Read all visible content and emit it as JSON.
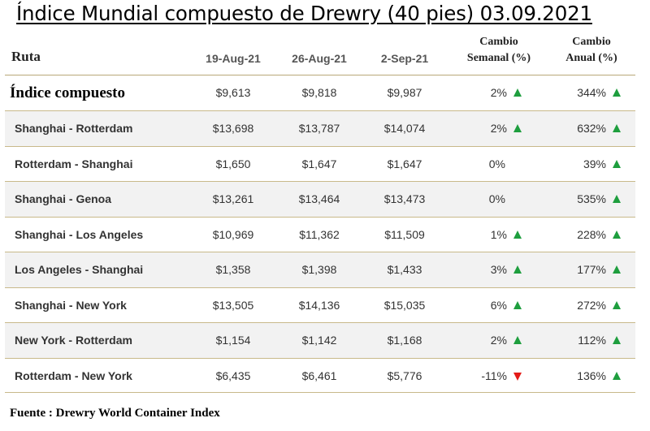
{
  "title": "Índice Mundial compuesto de Drewry (40 pies) 03.09.2021",
  "headers": {
    "route": "Ruta",
    "date1": "19-Aug-21",
    "date2": "26-Aug-21",
    "date3": "2-Sep-21",
    "weekly_line1": "Cambio",
    "weekly_line2": "Semanal (%)",
    "annual_line1": "Cambio",
    "annual_line2": "Anual (%)"
  },
  "rows": [
    {
      "route": "Índice compuesto",
      "d1": "$9,613",
      "d2": "$9,818",
      "d3": "$9,987",
      "weekly": "2%",
      "weekly_dir": "up",
      "annual": "344%",
      "annual_dir": "up"
    },
    {
      "route": "Shanghai - Rotterdam",
      "d1": "$13,698",
      "d2": "$13,787",
      "d3": "$14,074",
      "weekly": "2%",
      "weekly_dir": "up",
      "annual": "632%",
      "annual_dir": "up"
    },
    {
      "route": "Rotterdam - Shanghai",
      "d1": "$1,650",
      "d2": "$1,647",
      "d3": "$1,647",
      "weekly": "0%",
      "weekly_dir": "none",
      "annual": "39%",
      "annual_dir": "up"
    },
    {
      "route": "Shanghai - Genoa",
      "d1": "$13,261",
      "d2": "$13,464",
      "d3": "$13,473",
      "weekly": "0%",
      "weekly_dir": "none",
      "annual": "535%",
      "annual_dir": "up"
    },
    {
      "route": "Shanghai - Los Angeles",
      "d1": "$10,969",
      "d2": "$11,362",
      "d3": "$11,509",
      "weekly": "1%",
      "weekly_dir": "up",
      "annual": "228%",
      "annual_dir": "up"
    },
    {
      "route": "Los Angeles - Shanghai",
      "d1": "$1,358",
      "d2": "$1,398",
      "d3": "$1,433",
      "weekly": "3%",
      "weekly_dir": "up",
      "annual": "177%",
      "annual_dir": "up"
    },
    {
      "route": "Shanghai - New York",
      "d1": "$13,505",
      "d2": "$14,136",
      "d3": "$15,035",
      "weekly": "6%",
      "weekly_dir": "up",
      "annual": "272%",
      "annual_dir": "up"
    },
    {
      "route": "New York - Rotterdam",
      "d1": "$1,154",
      "d2": "$1,142",
      "d3": "$1,168",
      "weekly": "2%",
      "weekly_dir": "up",
      "annual": "112%",
      "annual_dir": "up"
    },
    {
      "route": "Rotterdam - New York",
      "d1": "$6,435",
      "d2": "$6,461",
      "d3": "$5,776",
      "weekly": "-11%",
      "weekly_dir": "down",
      "annual": "136%",
      "annual_dir": "up"
    }
  ],
  "colors": {
    "up": "#1e9e3e",
    "down": "#e41b17"
  },
  "source": "Fuente : Drewry World Container Index"
}
